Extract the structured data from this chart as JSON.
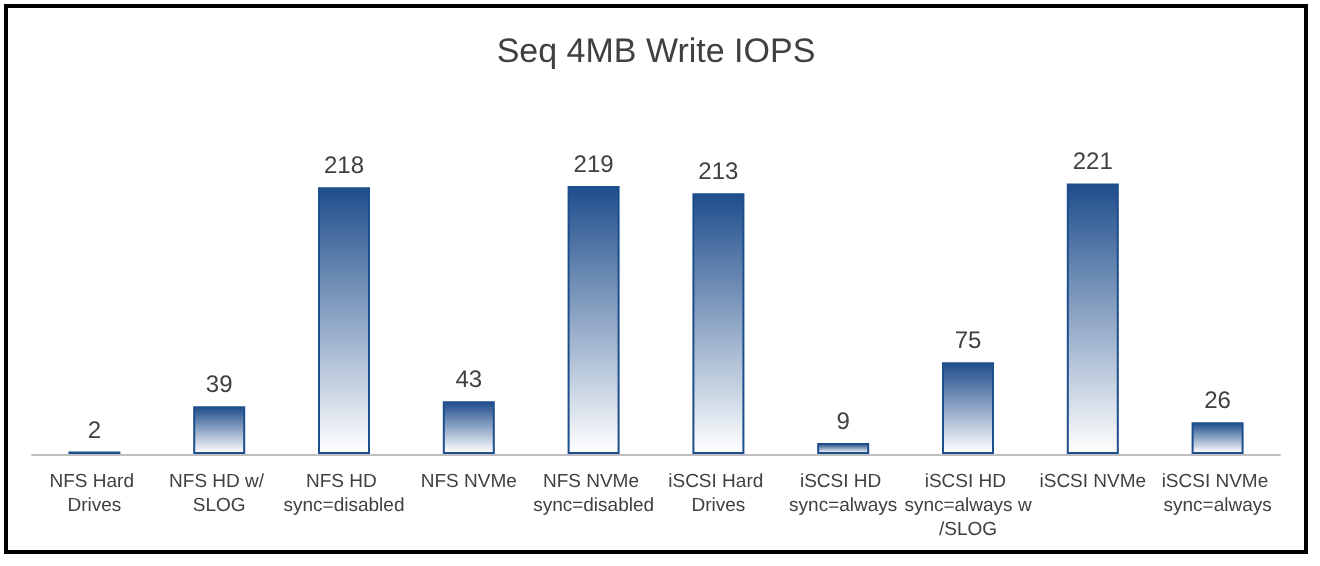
{
  "chart_data": {
    "type": "bar",
    "title": "Seq 4MB Write IOPS",
    "categories": [
      "NFS Hard Drives",
      "NFS HD w/ SLOG",
      "NFS HD sync=disabled",
      "NFS NVMe",
      "NFS NVMe sync=disabled",
      "iSCSI Hard Drives",
      "iSCSI HD sync=always",
      "iSCSI HD sync=always w/SLOG",
      "iSCSI NVMe",
      "iSCSI NVMe sync=always"
    ],
    "series": [
      {
        "color": "#1f4e8c",
        "values": [
          2,
          39,
          218,
          43,
          219,
          213,
          9,
          75,
          221,
          26
        ]
      }
    ],
    "data_labels": true
  }
}
